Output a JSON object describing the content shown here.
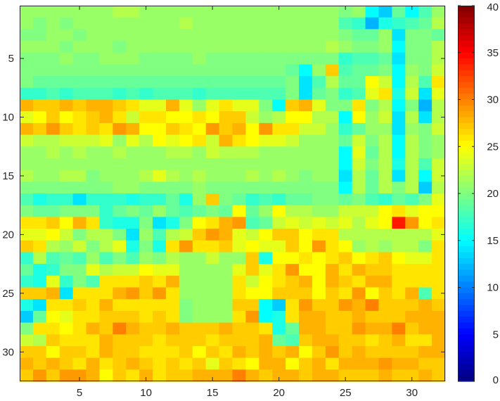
{
  "chart_data": {
    "type": "heatmap",
    "title": "",
    "xlabel": "",
    "ylabel": "",
    "rows": 32,
    "cols": 32,
    "x_ticks": [
      5,
      10,
      15,
      20,
      25,
      30
    ],
    "y_ticks": [
      5,
      10,
      15,
      20,
      25,
      30
    ],
    "y_direction": "top-down",
    "colormap": "jet",
    "clim": [
      0,
      40
    ],
    "colorbar_ticks": [
      0,
      5,
      10,
      15,
      20,
      25,
      30,
      35,
      40
    ],
    "colorbar_position": "right",
    "grid": false,
    "values": [
      [
        21,
        21,
        21,
        21,
        21,
        21,
        21,
        22,
        22,
        21,
        21,
        21,
        21,
        21,
        21,
        21,
        21,
        21,
        21,
        21,
        21,
        21,
        21,
        21,
        20,
        21,
        15,
        13,
        19,
        15,
        18,
        21
      ],
      [
        21,
        20,
        21,
        20,
        21,
        21,
        21,
        21,
        21,
        21,
        21,
        21,
        22,
        21,
        21,
        21,
        21,
        21,
        21,
        21,
        21,
        21,
        21,
        21,
        18,
        17,
        12,
        16,
        17,
        18,
        19,
        22
      ],
      [
        20,
        20,
        21,
        21,
        20,
        21,
        21,
        21,
        21,
        21,
        21,
        21,
        21,
        21,
        21,
        21,
        21,
        21,
        21,
        21,
        21,
        21,
        21,
        21,
        20,
        19,
        19,
        21,
        14,
        20,
        20,
        19
      ],
      [
        21,
        21,
        21,
        20,
        21,
        21,
        21,
        20,
        21,
        21,
        21,
        21,
        21,
        21,
        21,
        21,
        21,
        21,
        21,
        21,
        21,
        21,
        21,
        22,
        21,
        20,
        20,
        21,
        15,
        20,
        20,
        22
      ],
      [
        20,
        20,
        20,
        21,
        20,
        20,
        21,
        21,
        21,
        20,
        20,
        20,
        20,
        21,
        20,
        20,
        20,
        20,
        20,
        20,
        20,
        20,
        20,
        20,
        17,
        18,
        18,
        19,
        14,
        20,
        20,
        22
      ],
      [
        20,
        20,
        20,
        20,
        20,
        20,
        20,
        20,
        20,
        20,
        20,
        20,
        20,
        20,
        20,
        20,
        20,
        20,
        20,
        20,
        19,
        15,
        21,
        27,
        18,
        19,
        19,
        20,
        15,
        21,
        20,
        23
      ],
      [
        20,
        19,
        19,
        19,
        19,
        19,
        19,
        19,
        19,
        19,
        19,
        19,
        19,
        19,
        19,
        19,
        19,
        19,
        19,
        19,
        20,
        14,
        18,
        22,
        19,
        19,
        25,
        23,
        15,
        22,
        18,
        26
      ],
      [
        17,
        17,
        18,
        17,
        18,
        18,
        18,
        17,
        18,
        17,
        18,
        18,
        18,
        17,
        18,
        18,
        18,
        18,
        18,
        18,
        20,
        14,
        19,
        20,
        17,
        18,
        24,
        26,
        16,
        23,
        14,
        24
      ],
      [
        28,
        27,
        27,
        28,
        27,
        28,
        28,
        27,
        26,
        24,
        24,
        28,
        24,
        21,
        24,
        26,
        24,
        24,
        20,
        15,
        27,
        28,
        24,
        20,
        20,
        26,
        20,
        22,
        15,
        20,
        12,
        22
      ],
      [
        24,
        25,
        27,
        25,
        26,
        27,
        28,
        26,
        23,
        26,
        26,
        25,
        25,
        26,
        25,
        27,
        27,
        23,
        21,
        22,
        25,
        25,
        22,
        22,
        15,
        25,
        21,
        23,
        14,
        22,
        14,
        22
      ],
      [
        28,
        27,
        29,
        27,
        26,
        27,
        26,
        29,
        28,
        25,
        25,
        27,
        26,
        25,
        29,
        27,
        28,
        25,
        29,
        26,
        26,
        23,
        23,
        21,
        17,
        19,
        21,
        21,
        14,
        21,
        20,
        23
      ],
      [
        23,
        22,
        22,
        23,
        23,
        23,
        24,
        21,
        24,
        22,
        25,
        24,
        25,
        26,
        23,
        28,
        26,
        25,
        24,
        24,
        23,
        21,
        21,
        21,
        19,
        23,
        20,
        22,
        15,
        22,
        20,
        21
      ],
      [
        21,
        21,
        22,
        21,
        22,
        21,
        21,
        22,
        21,
        21,
        21,
        22,
        22,
        21,
        23,
        22,
        22,
        22,
        21,
        21,
        21,
        21,
        21,
        21,
        15,
        24,
        19,
        22,
        15,
        22,
        20,
        21
      ],
      [
        21,
        21,
        21,
        21,
        21,
        21,
        21,
        21,
        21,
        21,
        21,
        21,
        21,
        21,
        21,
        21,
        21,
        21,
        21,
        21,
        21,
        21,
        21,
        21,
        15,
        23,
        20,
        22,
        16,
        22,
        18,
        23
      ],
      [
        22,
        21,
        21,
        22,
        22,
        20,
        21,
        21,
        21,
        22,
        24,
        22,
        21,
        22,
        21,
        21,
        21,
        22,
        21,
        22,
        21,
        20,
        21,
        21,
        14,
        22,
        19,
        22,
        14,
        22,
        15,
        23
      ],
      [
        20,
        20,
        20,
        20,
        20,
        20,
        20,
        21,
        21,
        20,
        20,
        20,
        20,
        21,
        20,
        20,
        20,
        20,
        20,
        20,
        20,
        20,
        20,
        20,
        15,
        22,
        19,
        22,
        20,
        22,
        13,
        22
      ],
      [
        18,
        16,
        17,
        17,
        14,
        17,
        17,
        17,
        16,
        17,
        17,
        19,
        16,
        21,
        27,
        20,
        19,
        17,
        18,
        17,
        19,
        19,
        20,
        20,
        19,
        20,
        18,
        17,
        19,
        18,
        20,
        24
      ],
      [
        20,
        19,
        19,
        20,
        20,
        20,
        17,
        19,
        20,
        19,
        21,
        19,
        18,
        19,
        20,
        19,
        25,
        19,
        21,
        25,
        22,
        22,
        21,
        21,
        23,
        23,
        23,
        25,
        26,
        24,
        25,
        25
      ],
      [
        26,
        26,
        27,
        25,
        28,
        26,
        17,
        16,
        16,
        20,
        14,
        16,
        20,
        25,
        26,
        28,
        29,
        18,
        19,
        23,
        24,
        23,
        24,
        23,
        24,
        22,
        24,
        25,
        34,
        29,
        25,
        26
      ],
      [
        24,
        24,
        25,
        23,
        20,
        22,
        22,
        20,
        14,
        21,
        18,
        22,
        23,
        27,
        29,
        28,
        24,
        23,
        25,
        27,
        27,
        25,
        26,
        26,
        22,
        22,
        22,
        22,
        22,
        22,
        22,
        24
      ],
      [
        27,
        26,
        22,
        21,
        23,
        20,
        22,
        24,
        16,
        20,
        16,
        26,
        29,
        26,
        26,
        27,
        24,
        25,
        24,
        24,
        27,
        25,
        29,
        26,
        25,
        21,
        22,
        21,
        22,
        22,
        20,
        26
      ],
      [
        17,
        22,
        18,
        19,
        18,
        21,
        18,
        20,
        18,
        21,
        20,
        22,
        21,
        21,
        23,
        21,
        21,
        27,
        16,
        25,
        25,
        26,
        25,
        26,
        27,
        25,
        26,
        27,
        25,
        24,
        24,
        26
      ],
      [
        19,
        16,
        17,
        20,
        20,
        24,
        22,
        23,
        23,
        25,
        24,
        24,
        21,
        21,
        21,
        21,
        24,
        27,
        24,
        26,
        29,
        25,
        25,
        28,
        26,
        28,
        27,
        27,
        26,
        26,
        26,
        26
      ],
      [
        17,
        16,
        24,
        17,
        20,
        18,
        26,
        26,
        26,
        27,
        26,
        28,
        21,
        21,
        21,
        21,
        26,
        23,
        25,
        26,
        27,
        28,
        25,
        28,
        27,
        26,
        28,
        28,
        26,
        26,
        26,
        26
      ],
      [
        27,
        27,
        28,
        14,
        26,
        26,
        26,
        28,
        29,
        27,
        29,
        26,
        21,
        21,
        21,
        21,
        26,
        25,
        25,
        27,
        27,
        27,
        25,
        27,
        26,
        29,
        25,
        27,
        26,
        28,
        18,
        26
      ],
      [
        16,
        14,
        26,
        26,
        27,
        26,
        28,
        26,
        26,
        26,
        26,
        26,
        20,
        21,
        21,
        21,
        27,
        27,
        15,
        13,
        26,
        29,
        27,
        27,
        29,
        28,
        30,
        27,
        27,
        27,
        28,
        27
      ],
      [
        13,
        19,
        25,
        24,
        26,
        26,
        27,
        27,
        27,
        26,
        27,
        26,
        20,
        21,
        21,
        21,
        26,
        29,
        15,
        16,
        26,
        28,
        28,
        27,
        27,
        28,
        27,
        27,
        27,
        28,
        28,
        28
      ],
      [
        20,
        26,
        26,
        25,
        26,
        28,
        27,
        30,
        28,
        27,
        27,
        28,
        27,
        27,
        27,
        28,
        27,
        27,
        26,
        16,
        19,
        28,
        28,
        27,
        27,
        29,
        28,
        28,
        30,
        27,
        28,
        28
      ],
      [
        23,
        22,
        27,
        26,
        26,
        26,
        28,
        27,
        27,
        27,
        26,
        27,
        27,
        27,
        26,
        27,
        27,
        27,
        28,
        19,
        18,
        27,
        28,
        28,
        27,
        27,
        26,
        27,
        28,
        26,
        26,
        28
      ],
      [
        27,
        27,
        25,
        27,
        27,
        26,
        28,
        27,
        27,
        26,
        26,
        26,
        27,
        25,
        27,
        26,
        28,
        27,
        28,
        27,
        28,
        25,
        27,
        29,
        27,
        28,
        27,
        27,
        27,
        27,
        28,
        28
      ],
      [
        28,
        27,
        28,
        27,
        26,
        28,
        26,
        27,
        28,
        27,
        26,
        27,
        26,
        27,
        24,
        27,
        26,
        25,
        28,
        28,
        25,
        27,
        28,
        26,
        28,
        28,
        28,
        29,
        28,
        28,
        27,
        27
      ],
      [
        27,
        29,
        27,
        29,
        29,
        28,
        25,
        27,
        26,
        28,
        26,
        27,
        27,
        28,
        28,
        28,
        30,
        28,
        27,
        28,
        28,
        27,
        28,
        28,
        27,
        27,
        27,
        28,
        27,
        27,
        28,
        27
      ]
    ]
  }
}
